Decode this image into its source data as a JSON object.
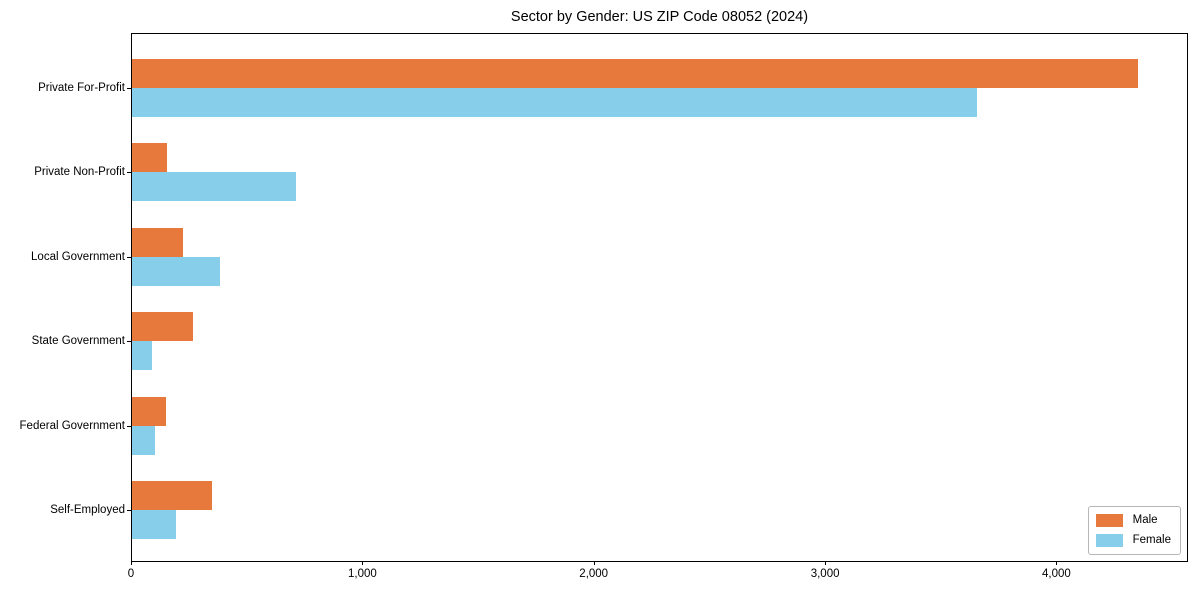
{
  "chart_data": {
    "type": "bar",
    "orientation": "horizontal",
    "title": "Sector by Gender: US ZIP Code 08052 (2024)",
    "categories": [
      "Private For-Profit",
      "Private Non-Profit",
      "Local Government",
      "State Government",
      "Federal Government",
      "Self-Employed"
    ],
    "series": [
      {
        "name": "Male",
        "color": "#E8793C",
        "values": [
          4350,
          150,
          220,
          265,
          145,
          345
        ]
      },
      {
        "name": "Female",
        "color": "#87CEEB",
        "values": [
          3650,
          710,
          380,
          85,
          100,
          190
        ]
      }
    ],
    "xlabel": "",
    "ylabel": "",
    "xlim": [
      0,
      4560
    ],
    "xticks": [
      0,
      1000,
      2000,
      3000,
      4000
    ],
    "xtick_labels": [
      "0",
      "1,000",
      "2,000",
      "3,000",
      "4,000"
    ],
    "grid": false,
    "legend_position": "lower right",
    "background_color": "#ffffff",
    "spine_color": "#000000"
  }
}
